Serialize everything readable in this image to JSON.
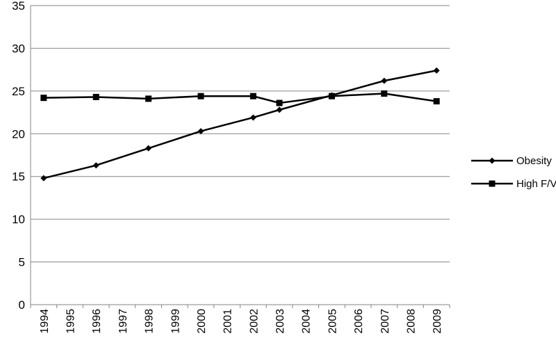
{
  "chart_data": {
    "type": "line",
    "categories": [
      "1994",
      "1995",
      "1996",
      "1997",
      "1998",
      "1999",
      "2000",
      "2001",
      "2002",
      "2003",
      "2004",
      "2005",
      "2006",
      "2007",
      "2008",
      "2009"
    ],
    "ylim": [
      0,
      35
    ],
    "yticks": [
      0,
      5,
      10,
      15,
      20,
      25,
      30,
      35
    ],
    "grid": "horizontal",
    "legend_position": "right",
    "series": [
      {
        "name": "Obesity",
        "marker": "diamond",
        "color": "#000000",
        "points": [
          {
            "x": "1994",
            "y": 14.8
          },
          {
            "x": "1996",
            "y": 16.3
          },
          {
            "x": "1998",
            "y": 18.3
          },
          {
            "x": "2000",
            "y": 20.3
          },
          {
            "x": "2002",
            "y": 21.9
          },
          {
            "x": "2003",
            "y": 22.8
          },
          {
            "x": "2005",
            "y": 24.5
          },
          {
            "x": "2007",
            "y": 26.2
          },
          {
            "x": "2009",
            "y": 27.4
          }
        ]
      },
      {
        "name": "High F/V",
        "marker": "square",
        "color": "#000000",
        "points": [
          {
            "x": "1994",
            "y": 24.2
          },
          {
            "x": "1996",
            "y": 24.3
          },
          {
            "x": "1998",
            "y": 24.1
          },
          {
            "x": "2000",
            "y": 24.4
          },
          {
            "x": "2002",
            "y": 24.4
          },
          {
            "x": "2003",
            "y": 23.6
          },
          {
            "x": "2005",
            "y": 24.4
          },
          {
            "x": "2007",
            "y": 24.7
          },
          {
            "x": "2009",
            "y": 23.8
          }
        ]
      }
    ]
  }
}
